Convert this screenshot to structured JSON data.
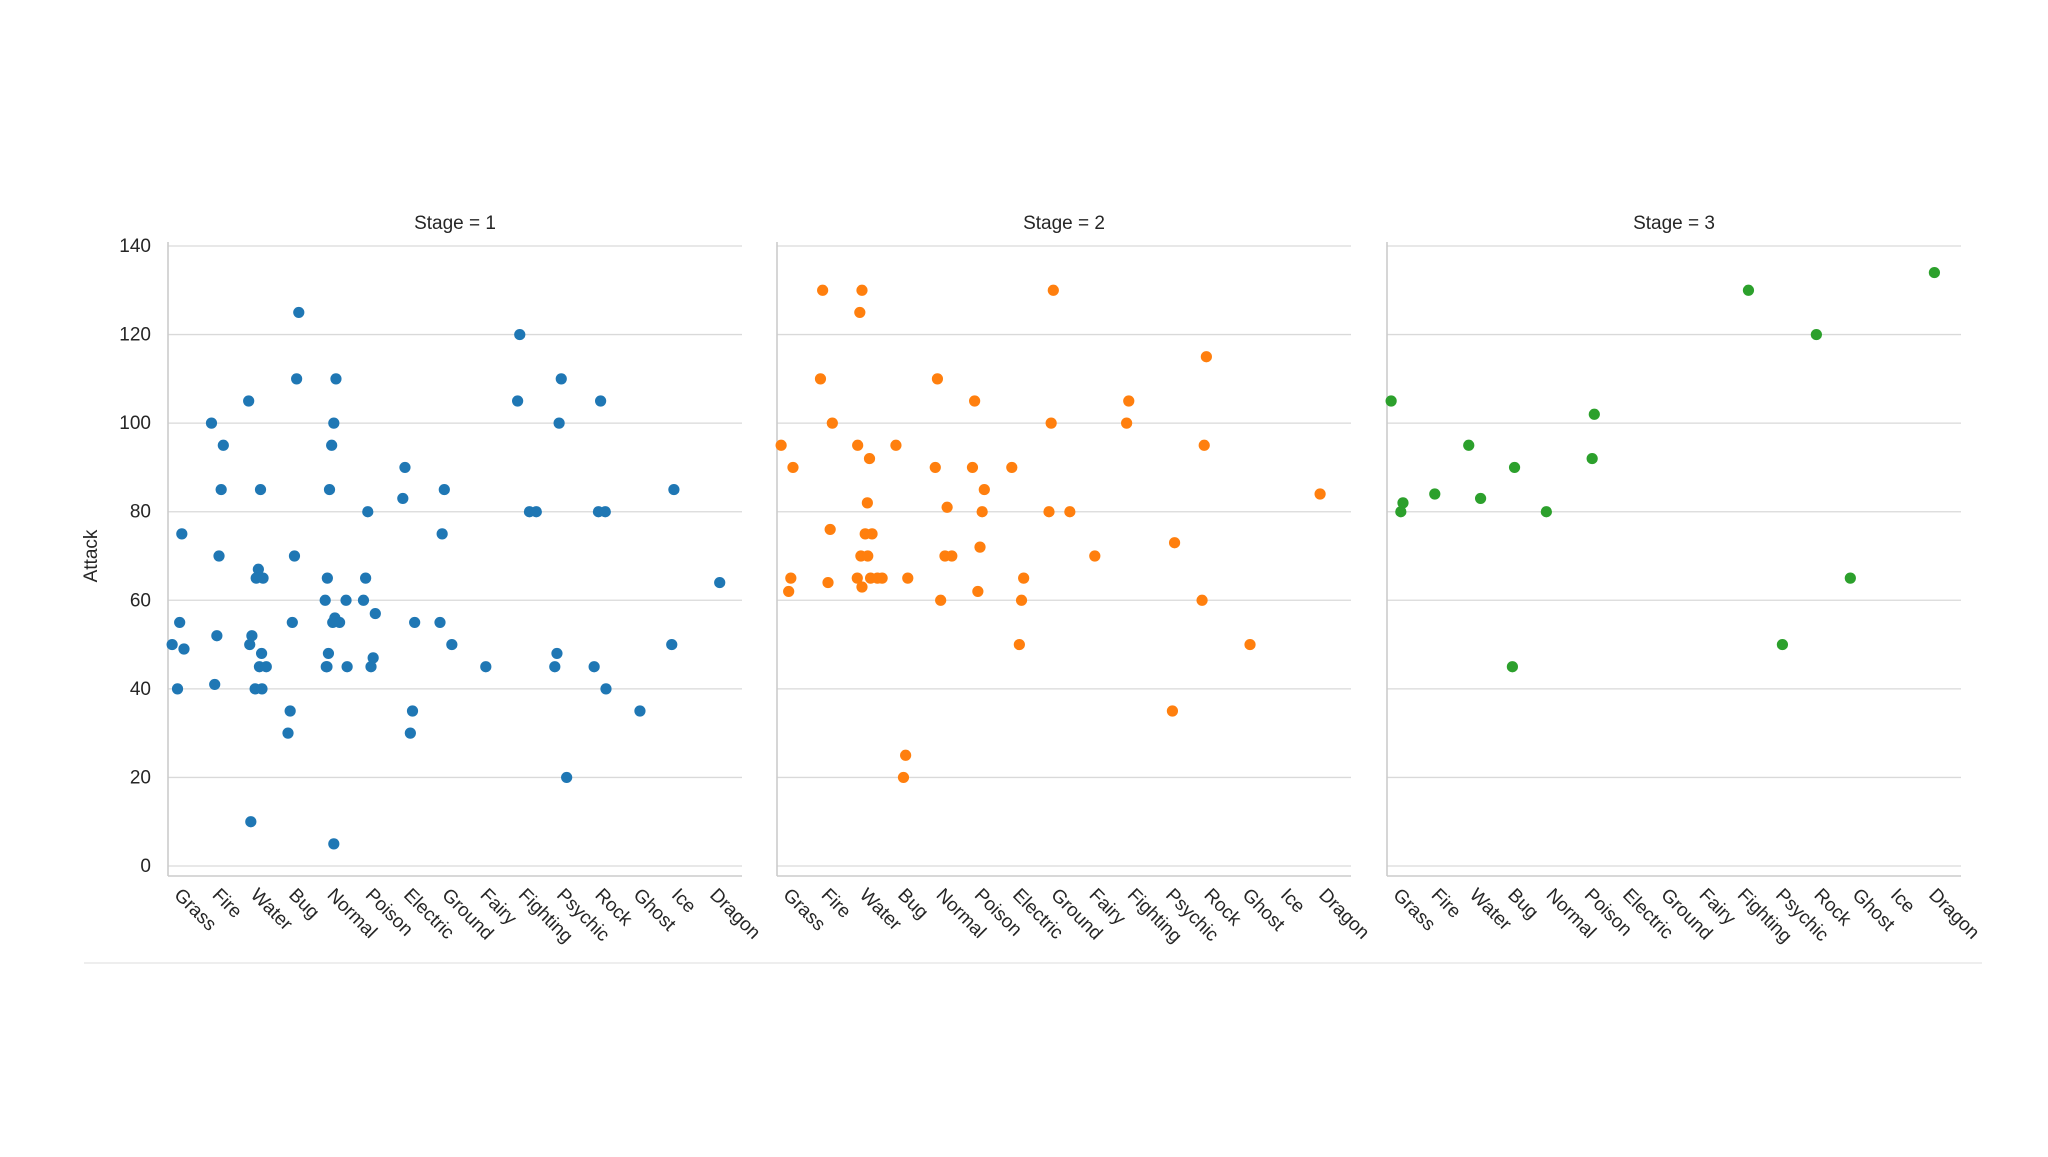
{
  "chart_data": {
    "type": "scatter",
    "subtype": "categorical strip plot, faceted",
    "ylabel": "Attack",
    "ylim": [
      0,
      140
    ],
    "yticks": [
      0,
      20,
      40,
      60,
      80,
      100,
      120,
      140
    ],
    "grid": "horizontal",
    "categories": [
      "Grass",
      "Fire",
      "Water",
      "Bug",
      "Normal",
      "Poison",
      "Electric",
      "Ground",
      "Fairy",
      "Fighting",
      "Psychic",
      "Rock",
      "Ghost",
      "Ice",
      "Dragon"
    ],
    "facets": [
      {
        "title": "Stage = 1",
        "color": "#1f77b4",
        "points": [
          [
            "Grass",
            50
          ],
          [
            "Grass",
            49
          ],
          [
            "Grass",
            75
          ],
          [
            "Grass",
            55
          ],
          [
            "Grass",
            40
          ],
          [
            "Fire",
            100
          ],
          [
            "Fire",
            95
          ],
          [
            "Fire",
            85
          ],
          [
            "Fire",
            70
          ],
          [
            "Fire",
            52
          ],
          [
            "Fire",
            41
          ],
          [
            "Water",
            105
          ],
          [
            "Water",
            85
          ],
          [
            "Water",
            67
          ],
          [
            "Water",
            65
          ],
          [
            "Water",
            65
          ],
          [
            "Water",
            52
          ],
          [
            "Water",
            50
          ],
          [
            "Water",
            48
          ],
          [
            "Water",
            45
          ],
          [
            "Water",
            45
          ],
          [
            "Water",
            40
          ],
          [
            "Water",
            40
          ],
          [
            "Water",
            10
          ],
          [
            "Bug",
            125
          ],
          [
            "Bug",
            110
          ],
          [
            "Bug",
            70
          ],
          [
            "Bug",
            55
          ],
          [
            "Bug",
            35
          ],
          [
            "Bug",
            30
          ],
          [
            "Normal",
            110
          ],
          [
            "Normal",
            100
          ],
          [
            "Normal",
            95
          ],
          [
            "Normal",
            85
          ],
          [
            "Normal",
            65
          ],
          [
            "Normal",
            60
          ],
          [
            "Normal",
            60
          ],
          [
            "Normal",
            56
          ],
          [
            "Normal",
            55
          ],
          [
            "Normal",
            55
          ],
          [
            "Normal",
            48
          ],
          [
            "Normal",
            45
          ],
          [
            "Normal",
            45
          ],
          [
            "Normal",
            45
          ],
          [
            "Normal",
            5
          ],
          [
            "Poison",
            80
          ],
          [
            "Poison",
            65
          ],
          [
            "Poison",
            60
          ],
          [
            "Poison",
            57
          ],
          [
            "Poison",
            47
          ],
          [
            "Poison",
            45
          ],
          [
            "Electric",
            90
          ],
          [
            "Electric",
            83
          ],
          [
            "Electric",
            55
          ],
          [
            "Electric",
            35
          ],
          [
            "Electric",
            30
          ],
          [
            "Ground",
            85
          ],
          [
            "Ground",
            75
          ],
          [
            "Ground",
            55
          ],
          [
            "Ground",
            50
          ],
          [
            "Fairy",
            45
          ],
          [
            "Fighting",
            120
          ],
          [
            "Fighting",
            105
          ],
          [
            "Fighting",
            80
          ],
          [
            "Fighting",
            80
          ],
          [
            "Psychic",
            110
          ],
          [
            "Psychic",
            100
          ],
          [
            "Psychic",
            48
          ],
          [
            "Psychic",
            45
          ],
          [
            "Psychic",
            20
          ],
          [
            "Rock",
            105
          ],
          [
            "Rock",
            80
          ],
          [
            "Rock",
            80
          ],
          [
            "Rock",
            45
          ],
          [
            "Rock",
            40
          ],
          [
            "Ghost",
            35
          ],
          [
            "Ice",
            85
          ],
          [
            "Ice",
            50
          ],
          [
            "Dragon",
            64
          ]
        ]
      },
      {
        "title": "Stage = 2",
        "color": "#ff7f0e",
        "points": [
          [
            "Grass",
            95
          ],
          [
            "Grass",
            90
          ],
          [
            "Grass",
            65
          ],
          [
            "Grass",
            62
          ],
          [
            "Fire",
            130
          ],
          [
            "Fire",
            110
          ],
          [
            "Fire",
            100
          ],
          [
            "Fire",
            76
          ],
          [
            "Fire",
            64
          ],
          [
            "Water",
            130
          ],
          [
            "Water",
            125
          ],
          [
            "Water",
            95
          ],
          [
            "Water",
            92
          ],
          [
            "Water",
            82
          ],
          [
            "Water",
            75
          ],
          [
            "Water",
            75
          ],
          [
            "Water",
            70
          ],
          [
            "Water",
            70
          ],
          [
            "Water",
            65
          ],
          [
            "Water",
            65
          ],
          [
            "Water",
            65
          ],
          [
            "Water",
            65
          ],
          [
            "Water",
            63
          ],
          [
            "Bug",
            95
          ],
          [
            "Bug",
            65
          ],
          [
            "Bug",
            25
          ],
          [
            "Bug",
            20
          ],
          [
            "Normal",
            110
          ],
          [
            "Normal",
            90
          ],
          [
            "Normal",
            81
          ],
          [
            "Normal",
            70
          ],
          [
            "Normal",
            70
          ],
          [
            "Normal",
            60
          ],
          [
            "Poison",
            105
          ],
          [
            "Poison",
            90
          ],
          [
            "Poison",
            85
          ],
          [
            "Poison",
            80
          ],
          [
            "Poison",
            72
          ],
          [
            "Poison",
            62
          ],
          [
            "Electric",
            90
          ],
          [
            "Electric",
            65
          ],
          [
            "Electric",
            60
          ],
          [
            "Electric",
            50
          ],
          [
            "Ground",
            130
          ],
          [
            "Ground",
            100
          ],
          [
            "Ground",
            80
          ],
          [
            "Ground",
            80
          ],
          [
            "Fairy",
            70
          ],
          [
            "Fighting",
            105
          ],
          [
            "Fighting",
            100
          ],
          [
            "Psychic",
            73
          ],
          [
            "Psychic",
            35
          ],
          [
            "Rock",
            115
          ],
          [
            "Rock",
            95
          ],
          [
            "Rock",
            60
          ],
          [
            "Ghost",
            50
          ],
          [
            "Dragon",
            84
          ]
        ]
      },
      {
        "title": "Stage = 3",
        "color": "#2ca02c",
        "points": [
          [
            "Grass",
            105
          ],
          [
            "Grass",
            82
          ],
          [
            "Grass",
            80
          ],
          [
            "Fire",
            84
          ],
          [
            "Water",
            95
          ],
          [
            "Water",
            83
          ],
          [
            "Bug",
            90
          ],
          [
            "Bug",
            45
          ],
          [
            "Normal",
            80
          ],
          [
            "Poison",
            102
          ],
          [
            "Poison",
            92
          ],
          [
            "Fighting",
            130
          ],
          [
            "Psychic",
            50
          ],
          [
            "Rock",
            120
          ],
          [
            "Ghost",
            65
          ],
          [
            "Dragon",
            134
          ]
        ]
      }
    ]
  }
}
